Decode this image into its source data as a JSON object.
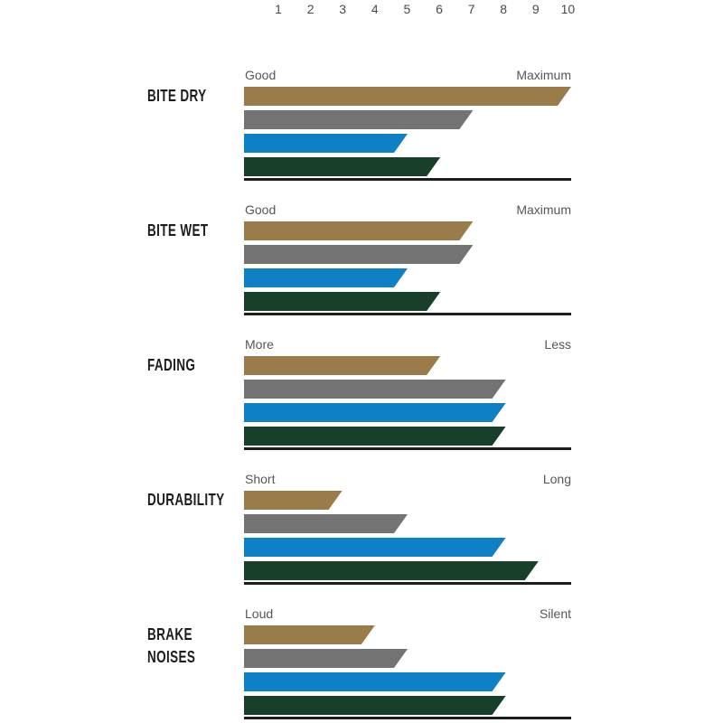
{
  "chart_data": {
    "type": "bar",
    "orientation": "horizontal",
    "title": "",
    "axis": {
      "position": "top",
      "min": 0,
      "max": 10,
      "ticks": [
        "1",
        "2",
        "3",
        "4",
        "5",
        "6",
        "7",
        "8",
        "9",
        "10"
      ]
    },
    "legend": "none",
    "series": [
      {
        "name": "gold",
        "color": "#9a7c4a"
      },
      {
        "name": "gray",
        "color": "#747374"
      },
      {
        "name": "blue",
        "color": "#0e81c6"
      },
      {
        "name": "green",
        "color": "#173f2a"
      }
    ],
    "groups": [
      {
        "label": "BITE DRY",
        "scale_left": "Good",
        "scale_right": "Maximum",
        "values": [
          10,
          7,
          5,
          6
        ]
      },
      {
        "label": "BITE WET",
        "scale_left": "Good",
        "scale_right": "Maximum",
        "values": [
          7,
          7,
          5,
          6
        ]
      },
      {
        "label": "FADING",
        "scale_left": "More",
        "scale_right": "Less",
        "values": [
          6,
          8,
          8,
          8
        ]
      },
      {
        "label": "DURABILITY",
        "scale_left": "Short",
        "scale_right": "Long",
        "values": [
          3,
          5,
          8,
          9
        ]
      },
      {
        "label": "BRAKE NOISES",
        "scale_left": "Loud",
        "scale_right": "Silent",
        "values": [
          4,
          5,
          8,
          8
        ]
      }
    ]
  },
  "colors": {
    "background": "#ffffff",
    "baseline": "#1d1d1b",
    "category_text": "#1d1d1b",
    "scale_text": "#4a4a4c",
    "end_label_text": "#55565a"
  }
}
